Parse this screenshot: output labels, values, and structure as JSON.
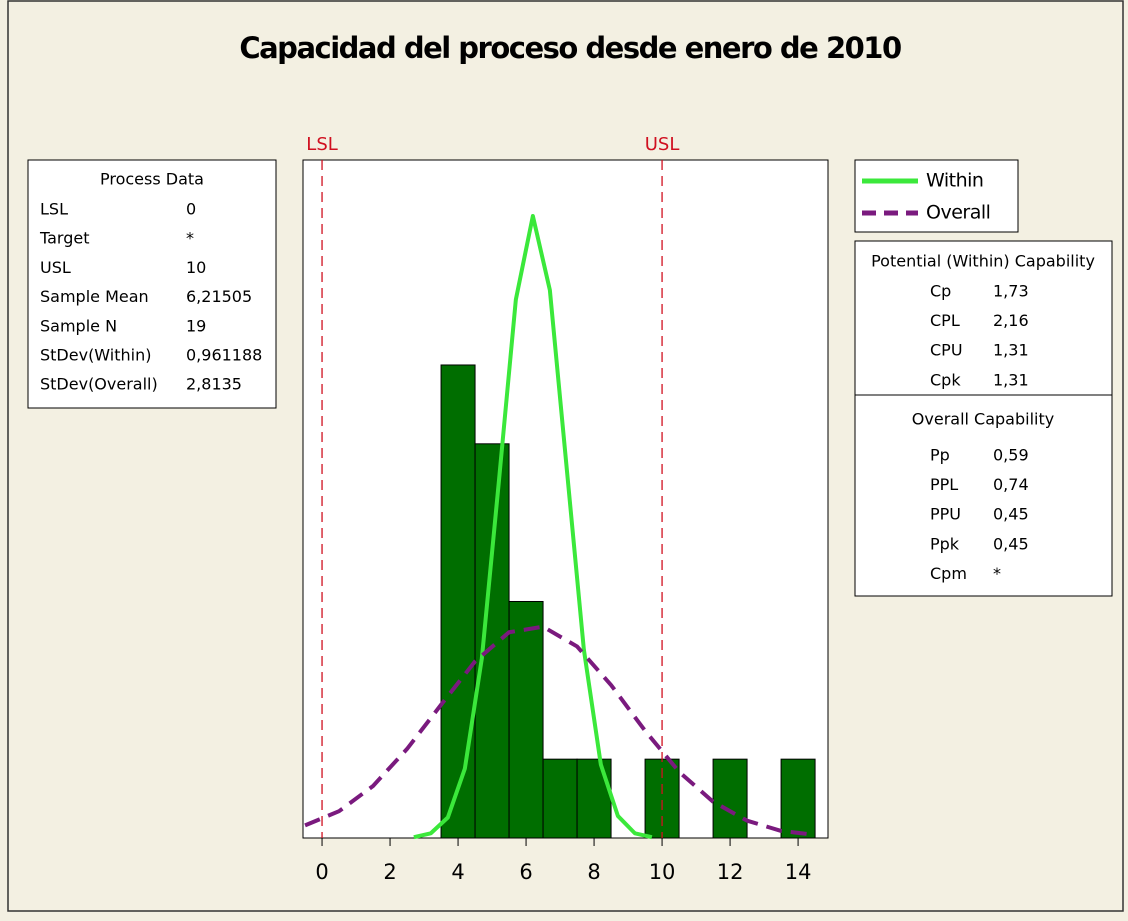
{
  "chart_data": {
    "type": "histogram",
    "title": "Capacidad del proceso desde enero de 2010",
    "bins": [
      3.5,
      4.5,
      5.5,
      6.5,
      7.5,
      8.5,
      9.5,
      10.5,
      11.5,
      12.5,
      13.5,
      14.5
    ],
    "counts": [
      6,
      5,
      3,
      1,
      1,
      0,
      1,
      0,
      1,
      0,
      1
    ],
    "color": "#006e00",
    "xlim": [
      -0.56,
      14.88
    ],
    "ylim": [
      0,
      8.6
    ],
    "xticks": [
      0,
      2,
      4,
      6,
      8,
      10,
      12,
      14
    ],
    "ref_lines": [
      {
        "value": 0,
        "label": "LSL"
      },
      {
        "value": 10,
        "label": "USL"
      }
    ],
    "ref_color": "#d01020",
    "series": [
      {
        "name": "Within",
        "color": "#3be83b",
        "dash": false,
        "x": [
          2.7,
          3.2,
          3.7,
          4.2,
          4.7,
          5.2,
          5.7,
          6.2,
          6.7,
          7.2,
          7.7,
          8.2,
          8.7,
          9.2,
          9.7
        ],
        "values": [
          0.01,
          0.06,
          0.26,
          0.88,
          2.28,
          4.52,
          6.83,
          7.89,
          6.95,
          4.67,
          2.39,
          0.93,
          0.28,
          0.06,
          0.01
        ]
      },
      {
        "name": "Overall",
        "color": "#7a1a7e",
        "dash": true,
        "x": [
          -0.5,
          0.5,
          1.5,
          2.5,
          3.5,
          4.5,
          5.5,
          6.5,
          7.5,
          8.5,
          9.5,
          10.5,
          11.5,
          12.5,
          13.5,
          14.5
        ],
        "values": [
          0.16,
          0.34,
          0.66,
          1.13,
          1.69,
          2.24,
          2.61,
          2.68,
          2.43,
          1.94,
          1.36,
          0.84,
          0.46,
          0.22,
          0.09,
          0.04
        ]
      }
    ],
    "process_data": {
      "title": "Process Data",
      "rows": [
        [
          "LSL",
          "0"
        ],
        [
          "Target",
          "*"
        ],
        [
          "USL",
          "10"
        ],
        [
          "Sample Mean",
          "6,21505"
        ],
        [
          "Sample N",
          "19"
        ],
        [
          "StDev(Within)",
          "0,961188"
        ],
        [
          "StDev(Overall)",
          "2,8135"
        ]
      ]
    },
    "potential": {
      "title": "Potential (Within) Capability",
      "rows": [
        [
          "Cp",
          "1,73"
        ],
        [
          "CPL",
          "2,16"
        ],
        [
          "CPU",
          "1,31"
        ],
        [
          "Cpk",
          "1,31"
        ]
      ]
    },
    "overall": {
      "title": "Overall Capability",
      "rows": [
        [
          "Pp",
          "0,59"
        ],
        [
          "PPL",
          "0,74"
        ],
        [
          "PPU",
          "0,45"
        ],
        [
          "Ppk",
          "0,45"
        ],
        [
          "Cpm",
          "*"
        ]
      ]
    }
  }
}
